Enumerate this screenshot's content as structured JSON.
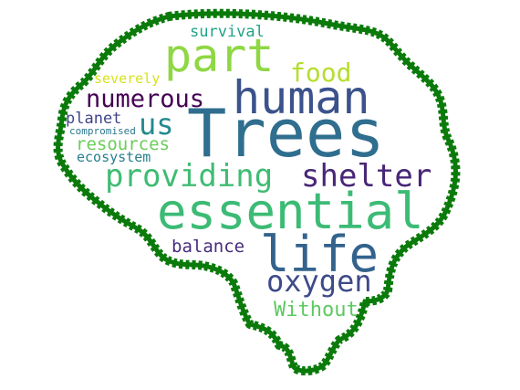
{
  "word_cloud": {
    "outline_color": "#0a7a0a",
    "shape": "brain",
    "words": [
      {
        "text": "Trees",
        "color": "#2f6e8e"
      },
      {
        "text": "essential",
        "color": "#3cbb75"
      },
      {
        "text": "human",
        "color": "#3b528b"
      },
      {
        "text": "life",
        "color": "#33638d"
      },
      {
        "text": "part",
        "color": "#8fd744"
      },
      {
        "text": "providing",
        "color": "#3fbc73"
      },
      {
        "text": "shelter",
        "color": "#482677"
      },
      {
        "text": "oxygen",
        "color": "#3e4a89"
      },
      {
        "text": "food",
        "color": "#b5de2b"
      },
      {
        "text": "numerous",
        "color": "#440154"
      },
      {
        "text": "us",
        "color": "#238a8d"
      },
      {
        "text": "resources",
        "color": "#6ccd5a"
      },
      {
        "text": "balance",
        "color": "#472c7a"
      },
      {
        "text": "Without",
        "color": "#5ec962"
      },
      {
        "text": "survival",
        "color": "#20a386"
      },
      {
        "text": "planet",
        "color": "#414487"
      },
      {
        "text": "ecosystem",
        "color": "#277f8e"
      },
      {
        "text": "severely",
        "color": "#d8e219"
      },
      {
        "text": "compromised",
        "color": "#2a788e"
      }
    ]
  }
}
